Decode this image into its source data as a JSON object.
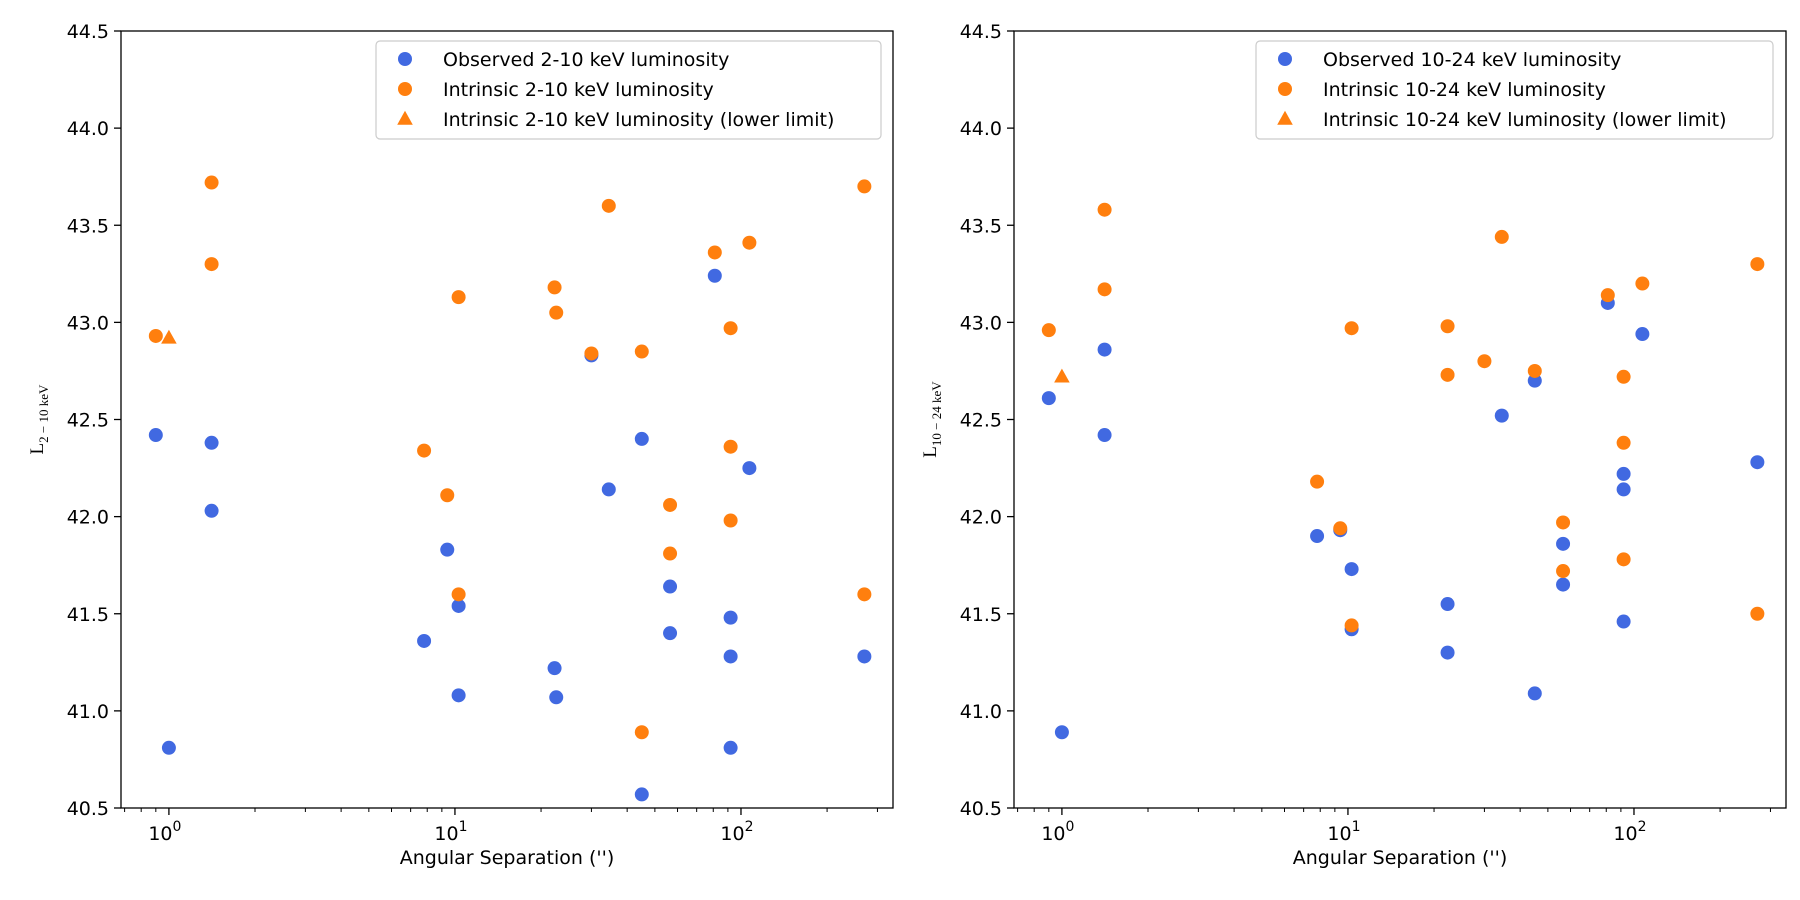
{
  "colors": {
    "observed": "#4169e1",
    "intrinsic": "#ff7f0e"
  },
  "chart_data": [
    {
      "type": "scatter",
      "xscale": "log",
      "xlim": [
        0.68,
        340
      ],
      "ylim": [
        40.5,
        44.5
      ],
      "xlabel": "Angular Separation ('')",
      "ylabel_main": "L",
      "ylabel_sub": "2 − 10 keV",
      "xticks": [
        {
          "value": 1,
          "base": "10",
          "exp": "0"
        },
        {
          "value": 10,
          "base": "10",
          "exp": "1"
        },
        {
          "value": 100,
          "base": "10",
          "exp": "2"
        }
      ],
      "yticks": [
        "40.5",
        "41.0",
        "41.5",
        "42.0",
        "42.5",
        "43.0",
        "43.5",
        "44.0",
        "44.5"
      ],
      "legend_position": "top-right",
      "grid": false,
      "series": [
        {
          "name": "Observed 2-10 keV luminosity",
          "marker": "circle",
          "color": "#4169e1",
          "x": [
            0.9,
            1.0,
            1.41,
            1.41,
            7.8,
            9.4,
            10.3,
            10.3,
            22.3,
            22.6,
            30.0,
            34.5,
            45.0,
            45.0,
            56.5,
            56.5,
            92.0,
            92.0,
            92.0,
            107.0,
            81.0,
            270.0
          ],
          "y": [
            42.42,
            40.81,
            42.38,
            42.03,
            41.36,
            41.83,
            41.54,
            41.08,
            41.22,
            41.07,
            42.83,
            42.14,
            42.4,
            40.57,
            41.64,
            41.4,
            41.48,
            41.28,
            40.81,
            42.25,
            43.24,
            41.28
          ]
        },
        {
          "name": "Intrinsic 2-10 keV luminosity",
          "marker": "circle",
          "color": "#ff7f0e",
          "x": [
            0.9,
            1.41,
            1.41,
            7.8,
            9.4,
            10.3,
            10.3,
            22.3,
            22.6,
            30.0,
            34.5,
            45.0,
            45.0,
            56.5,
            56.5,
            81.0,
            92.0,
            92.0,
            92.0,
            107.0,
            270.0,
            270.0
          ],
          "y": [
            42.93,
            43.72,
            43.3,
            42.34,
            42.11,
            43.13,
            41.6,
            43.18,
            43.05,
            42.84,
            43.6,
            42.85,
            40.89,
            42.06,
            41.81,
            43.36,
            42.97,
            42.36,
            41.98,
            43.41,
            43.7,
            41.6
          ]
        },
        {
          "name": "Intrinsic 2-10 keV luminosity (lower limit)",
          "marker": "triangle",
          "color": "#ff7f0e",
          "x": [
            1.0
          ],
          "y": [
            42.92
          ]
        }
      ]
    },
    {
      "type": "scatter",
      "xscale": "log",
      "xlim": [
        0.68,
        340
      ],
      "ylim": [
        40.5,
        44.5
      ],
      "xlabel": "Angular Separation ('')",
      "ylabel_main": "L",
      "ylabel_sub": "10 − 24 keV",
      "xticks": [
        {
          "value": 1,
          "base": "10",
          "exp": "0"
        },
        {
          "value": 10,
          "base": "10",
          "exp": "1"
        },
        {
          "value": 100,
          "base": "10",
          "exp": "2"
        }
      ],
      "yticks": [
        "40.5",
        "41.0",
        "41.5",
        "42.0",
        "42.5",
        "43.0",
        "43.5",
        "44.0",
        "44.5"
      ],
      "legend_position": "top-right",
      "grid": false,
      "series": [
        {
          "name": "Observed 10-24 keV luminosity",
          "marker": "circle",
          "color": "#4169e1",
          "x": [
            0.9,
            1.0,
            1.41,
            1.41,
            7.8,
            9.4,
            10.3,
            10.3,
            22.3,
            22.3,
            34.5,
            45.0,
            45.0,
            56.5,
            56.5,
            81.0,
            92.0,
            92.0,
            92.0,
            107.0,
            270.0
          ],
          "y": [
            42.61,
            40.89,
            42.86,
            42.42,
            41.9,
            41.93,
            41.73,
            41.42,
            41.55,
            41.3,
            42.52,
            42.7,
            41.09,
            41.86,
            41.65,
            43.1,
            42.22,
            42.14,
            41.46,
            42.94,
            42.28
          ]
        },
        {
          "name": "Intrinsic 10-24 keV luminosity",
          "marker": "circle",
          "color": "#ff7f0e",
          "x": [
            0.9,
            1.41,
            1.41,
            7.8,
            9.4,
            10.3,
            10.3,
            22.3,
            22.3,
            30.0,
            34.5,
            45.0,
            56.5,
            56.5,
            81.0,
            92.0,
            92.0,
            92.0,
            107.0,
            270.0,
            270.0
          ],
          "y": [
            42.96,
            43.58,
            43.17,
            42.18,
            41.94,
            42.97,
            41.44,
            42.98,
            42.73,
            42.8,
            43.44,
            42.75,
            41.97,
            41.72,
            43.14,
            42.72,
            42.38,
            41.78,
            43.2,
            43.3,
            41.5
          ]
        },
        {
          "name": "Intrinsic 10-24 keV luminosity (lower limit)",
          "marker": "triangle",
          "color": "#ff7f0e",
          "x": [
            1.0
          ],
          "y": [
            42.72
          ]
        }
      ]
    }
  ]
}
